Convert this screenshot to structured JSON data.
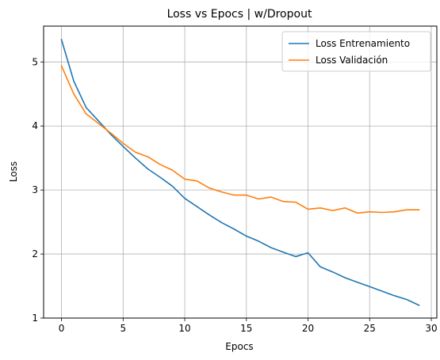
{
  "chart_data": {
    "type": "line",
    "title": "Loss vs Epocs | w/Dropout",
    "xlabel": "Epocs",
    "ylabel": "Loss",
    "xlim": [
      -1.45,
      30.45
    ],
    "ylim": [
      1.0,
      5.56
    ],
    "xticks": [
      0,
      5,
      10,
      15,
      20,
      25,
      30
    ],
    "yticks": [
      1,
      2,
      3,
      4,
      5
    ],
    "grid": true,
    "legend": "top-right",
    "x": [
      0,
      1,
      2,
      3,
      4,
      5,
      6,
      7,
      8,
      9,
      10,
      11,
      12,
      13,
      14,
      15,
      16,
      17,
      18,
      19,
      20,
      21,
      22,
      23,
      24,
      25,
      26,
      27,
      28,
      29
    ],
    "series": [
      {
        "name": "Loss Entrenamiento",
        "color": "#1f77b4",
        "values": [
          5.35,
          4.7,
          4.29,
          4.08,
          3.87,
          3.68,
          3.5,
          3.33,
          3.2,
          3.06,
          2.87,
          2.74,
          2.61,
          2.49,
          2.39,
          2.28,
          2.2,
          2.1,
          2.03,
          1.96,
          2.02,
          1.8,
          1.72,
          1.63,
          1.56,
          1.49,
          1.42,
          1.35,
          1.29,
          1.2
        ]
      },
      {
        "name": "Loss Validación",
        "color": "#ff7f0e",
        "values": [
          4.94,
          4.5,
          4.19,
          4.04,
          3.89,
          3.73,
          3.59,
          3.52,
          3.4,
          3.31,
          3.17,
          3.14,
          3.03,
          2.97,
          2.92,
          2.92,
          2.86,
          2.89,
          2.82,
          2.81,
          2.7,
          2.72,
          2.68,
          2.72,
          2.64,
          2.66,
          2.65,
          2.66,
          2.69,
          2.69
        ]
      }
    ]
  }
}
